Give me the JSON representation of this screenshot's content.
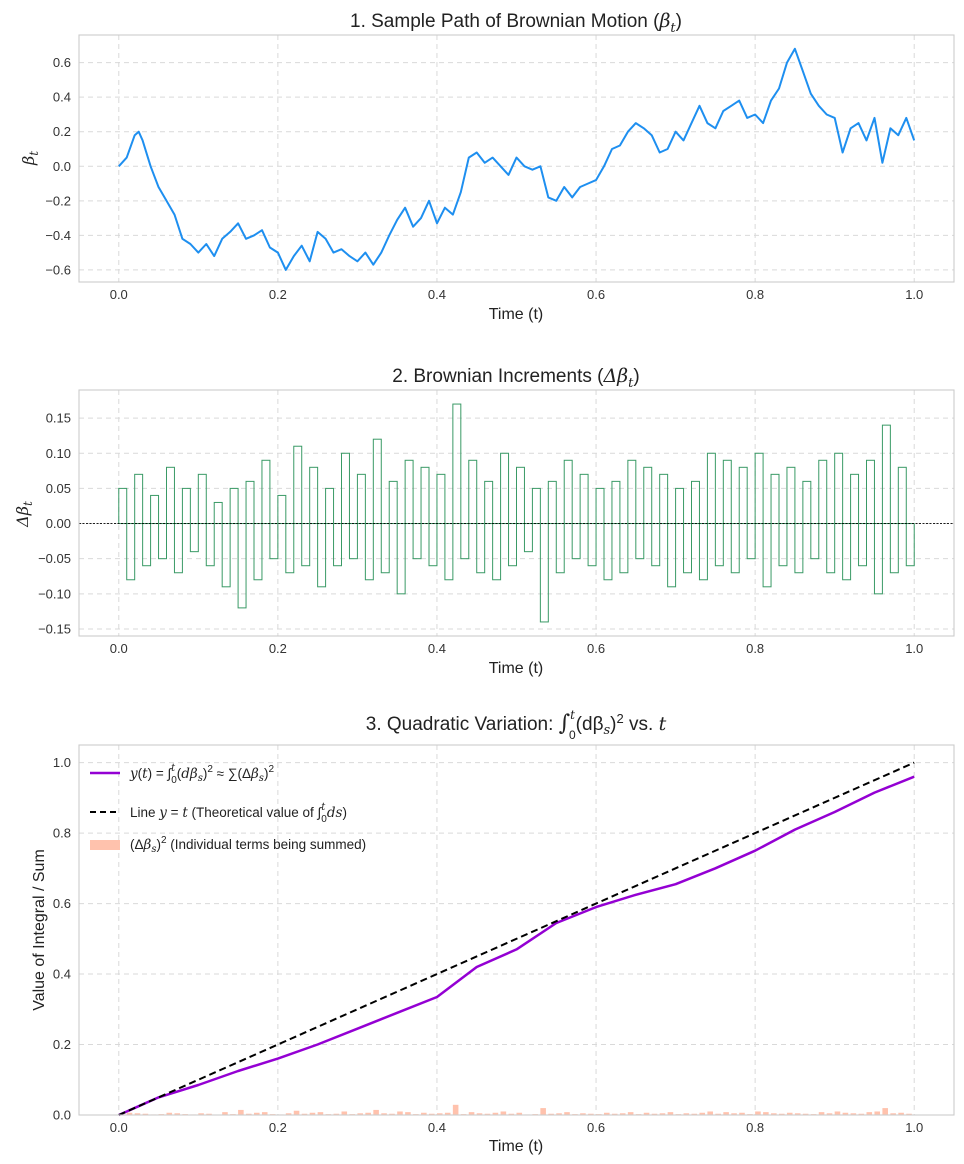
{
  "chart_data": [
    {
      "type": "line",
      "title": "1. Sample Path of Brownian Motion (βt)",
      "title_parts": {
        "text": "1. Sample Path of Brownian Motion (",
        "sym": "β",
        "sub": "t",
        "close": ")"
      },
      "xlabel": "Time (t)",
      "ylabel_parts": {
        "sym": "β",
        "sub": "t"
      },
      "xlim": [
        -0.05,
        1.05
      ],
      "ylim": [
        -0.67,
        0.76
      ],
      "xticks": [
        0.0,
        0.2,
        0.4,
        0.6,
        0.8,
        1.0
      ],
      "xtick_labels": [
        "0.0",
        "0.2",
        "0.4",
        "0.6",
        "0.8",
        "1.0"
      ],
      "yticks": [
        -0.6,
        -0.4,
        -0.2,
        0.0,
        0.2,
        0.4,
        0.6
      ],
      "ytick_labels": [
        "−0.6",
        "−0.4",
        "−0.2",
        "0.0",
        "0.2",
        "0.4",
        "0.6"
      ],
      "grid": true,
      "series": [
        {
          "color": "#1e8ff0",
          "linewidth": 2,
          "x": [
            0.0,
            0.01,
            0.02,
            0.025,
            0.03,
            0.04,
            0.05,
            0.06,
            0.07,
            0.08,
            0.09,
            0.1,
            0.11,
            0.12,
            0.13,
            0.14,
            0.15,
            0.16,
            0.17,
            0.18,
            0.19,
            0.2,
            0.21,
            0.22,
            0.23,
            0.24,
            0.25,
            0.26,
            0.27,
            0.28,
            0.29,
            0.3,
            0.31,
            0.32,
            0.33,
            0.34,
            0.35,
            0.36,
            0.37,
            0.38,
            0.39,
            0.4,
            0.41,
            0.42,
            0.43,
            0.44,
            0.45,
            0.46,
            0.47,
            0.48,
            0.49,
            0.5,
            0.51,
            0.52,
            0.53,
            0.54,
            0.55,
            0.56,
            0.57,
            0.58,
            0.59,
            0.6,
            0.61,
            0.62,
            0.63,
            0.64,
            0.65,
            0.66,
            0.67,
            0.68,
            0.69,
            0.7,
            0.71,
            0.72,
            0.73,
            0.74,
            0.75,
            0.76,
            0.77,
            0.78,
            0.79,
            0.8,
            0.81,
            0.82,
            0.83,
            0.84,
            0.85,
            0.86,
            0.87,
            0.88,
            0.89,
            0.9,
            0.91,
            0.92,
            0.93,
            0.94,
            0.95,
            0.96,
            0.97,
            0.98,
            0.99,
            1.0
          ],
          "y": [
            0.0,
            0.05,
            0.18,
            0.2,
            0.15,
            0.0,
            -0.12,
            -0.2,
            -0.28,
            -0.42,
            -0.45,
            -0.5,
            -0.45,
            -0.52,
            -0.42,
            -0.38,
            -0.33,
            -0.42,
            -0.4,
            -0.37,
            -0.47,
            -0.5,
            -0.6,
            -0.52,
            -0.46,
            -0.55,
            -0.38,
            -0.42,
            -0.5,
            -0.48,
            -0.52,
            -0.55,
            -0.5,
            -0.57,
            -0.5,
            -0.4,
            -0.31,
            -0.24,
            -0.35,
            -0.3,
            -0.2,
            -0.33,
            -0.24,
            -0.28,
            -0.15,
            0.05,
            0.08,
            0.02,
            0.05,
            0.0,
            -0.05,
            0.05,
            0.0,
            -0.02,
            0.0,
            -0.18,
            -0.2,
            -0.12,
            -0.18,
            -0.12,
            -0.1,
            -0.08,
            0.0,
            0.1,
            0.12,
            0.2,
            0.25,
            0.22,
            0.18,
            0.08,
            0.1,
            0.2,
            0.15,
            0.25,
            0.35,
            0.25,
            0.22,
            0.32,
            0.35,
            0.38,
            0.28,
            0.3,
            0.25,
            0.38,
            0.45,
            0.6,
            0.68,
            0.55,
            0.42,
            0.35,
            0.3,
            0.28,
            0.08,
            0.22,
            0.25,
            0.15,
            0.28,
            0.02,
            0.22,
            0.18,
            0.28,
            0.15
          ]
        }
      ]
    },
    {
      "type": "bar",
      "title": "2. Brownian Increments (Δβt)",
      "title_parts": {
        "text": "2. Brownian Increments (",
        "sym": "Δβ",
        "sub": "t",
        "close": ")"
      },
      "xlabel": "Time (t)",
      "ylabel_parts": {
        "sym": "Δβ",
        "sub": "t"
      },
      "xlim": [
        -0.05,
        1.05
      ],
      "ylim": [
        -0.16,
        0.19
      ],
      "xticks": [
        0.0,
        0.2,
        0.4,
        0.6,
        0.8,
        1.0
      ],
      "xtick_labels": [
        "0.0",
        "0.2",
        "0.4",
        "0.6",
        "0.8",
        "1.0"
      ],
      "yticks": [
        -0.15,
        -0.1,
        -0.05,
        0.0,
        0.05,
        0.1,
        0.15
      ],
      "ytick_labels": [
        "−0.15",
        "−0.10",
        "−0.05",
        "0.00",
        "0.05",
        "0.10",
        "0.15"
      ],
      "grid": true,
      "style": "step",
      "color": "#3a9a66",
      "x": [
        0.0,
        0.01,
        0.02,
        0.03,
        0.04,
        0.05,
        0.06,
        0.07,
        0.08,
        0.09,
        0.1,
        0.11,
        0.12,
        0.13,
        0.14,
        0.15,
        0.16,
        0.17,
        0.18,
        0.19,
        0.2,
        0.21,
        0.22,
        0.23,
        0.24,
        0.25,
        0.26,
        0.27,
        0.28,
        0.29,
        0.3,
        0.31,
        0.32,
        0.33,
        0.34,
        0.35,
        0.36,
        0.37,
        0.38,
        0.39,
        0.4,
        0.41,
        0.42,
        0.43,
        0.44,
        0.45,
        0.46,
        0.47,
        0.48,
        0.49,
        0.5,
        0.51,
        0.52,
        0.53,
        0.54,
        0.55,
        0.56,
        0.57,
        0.58,
        0.59,
        0.6,
        0.61,
        0.62,
        0.63,
        0.64,
        0.65,
        0.66,
        0.67,
        0.68,
        0.69,
        0.7,
        0.71,
        0.72,
        0.73,
        0.74,
        0.75,
        0.76,
        0.77,
        0.78,
        0.79,
        0.8,
        0.81,
        0.82,
        0.83,
        0.84,
        0.85,
        0.86,
        0.87,
        0.88,
        0.89,
        0.9,
        0.91,
        0.92,
        0.93,
        0.94,
        0.95,
        0.96,
        0.97,
        0.98,
        0.99
      ],
      "values": [
        0.05,
        -0.08,
        0.07,
        -0.06,
        0.04,
        -0.05,
        0.08,
        -0.07,
        0.05,
        -0.04,
        0.07,
        -0.06,
        0.03,
        -0.09,
        0.05,
        -0.12,
        0.06,
        -0.08,
        0.09,
        -0.05,
        0.04,
        -0.07,
        0.11,
        -0.06,
        0.08,
        -0.09,
        0.05,
        -0.06,
        0.1,
        -0.05,
        0.07,
        -0.08,
        0.12,
        -0.07,
        0.06,
        -0.1,
        0.09,
        -0.05,
        0.08,
        -0.06,
        0.07,
        -0.08,
        0.17,
        -0.05,
        0.09,
        -0.07,
        0.06,
        -0.08,
        0.1,
        -0.06,
        0.08,
        -0.04,
        0.05,
        -0.14,
        0.06,
        -0.07,
        0.09,
        -0.05,
        0.07,
        -0.06,
        0.05,
        -0.08,
        0.06,
        -0.07,
        0.09,
        -0.05,
        0.08,
        -0.06,
        0.07,
        -0.09,
        0.05,
        -0.07,
        0.06,
        -0.08,
        0.1,
        -0.06,
        0.09,
        -0.07,
        0.08,
        -0.05,
        0.1,
        -0.09,
        0.07,
        -0.06,
        0.08,
        -0.07,
        0.06,
        -0.05,
        0.09,
        -0.07,
        0.1,
        -0.08,
        0.07,
        -0.06,
        0.09,
        -0.1,
        0.14,
        -0.07,
        0.08,
        -0.06
      ]
    },
    {
      "type": "line",
      "title": "3. Quadratic Variation: ∫0t(dβs)2 vs. t",
      "title_parts": {
        "text": "3. Quadratic Variation: ",
        "int": "∫",
        "sup": "t",
        "sub": "0",
        "body": "(dβ",
        "bsub": "s",
        "close": ")",
        "pow": "2",
        "vs": " vs. ",
        "t": "t"
      },
      "xlabel": "Time (t)",
      "ylabel": "Value of Integral / Sum",
      "xlim": [
        -0.05,
        1.05
      ],
      "ylim": [
        0.0,
        1.05
      ],
      "xticks": [
        0.0,
        0.2,
        0.4,
        0.6,
        0.8,
        1.0
      ],
      "xtick_labels": [
        "0.0",
        "0.2",
        "0.4",
        "0.6",
        "0.8",
        "1.0"
      ],
      "yticks": [
        0.0,
        0.2,
        0.4,
        0.6,
        0.8,
        1.0
      ],
      "ytick_labels": [
        "0.0",
        "0.2",
        "0.4",
        "0.6",
        "0.8",
        "1.0"
      ],
      "grid": true,
      "legend": {
        "placement": "top-left",
        "entries": [
          {
            "label": "y(t) = ∫0t(dβs)2 ≈ ∑(Δβs)2",
            "color": "#9400d3",
            "style": "solid"
          },
          {
            "label": "Line y = t (Theoretical value of ∫0tds)",
            "color": "#000000",
            "style": "dashed"
          },
          {
            "label": "(Δβs)2 (Individual terms being summed)",
            "color": "#ffc2ad",
            "style": "patch"
          }
        ]
      },
      "series": [
        {
          "name": "y(t) = ∫0t(dβs)2 ≈ ∑(Δβs)2",
          "color": "#9400d3",
          "x": [
            0.0,
            0.025,
            0.05,
            0.1,
            0.15,
            0.2,
            0.25,
            0.3,
            0.35,
            0.4,
            0.45,
            0.5,
            0.55,
            0.6,
            0.65,
            0.7,
            0.75,
            0.8,
            0.85,
            0.9,
            0.95,
            1.0
          ],
          "y": [
            0.0,
            0.025,
            0.05,
            0.085,
            0.125,
            0.16,
            0.2,
            0.245,
            0.29,
            0.335,
            0.42,
            0.47,
            0.545,
            0.59,
            0.625,
            0.655,
            0.7,
            0.75,
            0.81,
            0.86,
            0.915,
            0.96
          ]
        },
        {
          "name": "Line y = t (Theoretical value of ∫0tds)",
          "color": "#000000",
          "style": "dashed",
          "x": [
            0.0,
            1.0
          ],
          "y": [
            0.0,
            1.0
          ]
        }
      ],
      "increments_squared": {
        "color": "#ffc2ad",
        "x": [
          0.0,
          0.01,
          0.02,
          0.03,
          0.04,
          0.05,
          0.06,
          0.07,
          0.08,
          0.09,
          0.1,
          0.11,
          0.12,
          0.13,
          0.14,
          0.15,
          0.16,
          0.17,
          0.18,
          0.19,
          0.2,
          0.21,
          0.22,
          0.23,
          0.24,
          0.25,
          0.26,
          0.27,
          0.28,
          0.29,
          0.3,
          0.31,
          0.32,
          0.33,
          0.34,
          0.35,
          0.36,
          0.37,
          0.38,
          0.39,
          0.4,
          0.41,
          0.42,
          0.43,
          0.44,
          0.45,
          0.46,
          0.47,
          0.48,
          0.49,
          0.5,
          0.51,
          0.52,
          0.53,
          0.54,
          0.55,
          0.56,
          0.57,
          0.58,
          0.59,
          0.6,
          0.61,
          0.62,
          0.63,
          0.64,
          0.65,
          0.66,
          0.67,
          0.68,
          0.69,
          0.7,
          0.71,
          0.72,
          0.73,
          0.74,
          0.75,
          0.76,
          0.77,
          0.78,
          0.79,
          0.8,
          0.81,
          0.82,
          0.83,
          0.84,
          0.85,
          0.86,
          0.87,
          0.88,
          0.89,
          0.9,
          0.91,
          0.92,
          0.93,
          0.94,
          0.95,
          0.96,
          0.97,
          0.98,
          0.99
        ],
        "values": [
          0.0025,
          0.0064,
          0.0049,
          0.0036,
          0.0016,
          0.0025,
          0.0064,
          0.0049,
          0.0025,
          0.0016,
          0.0049,
          0.0036,
          0.0009,
          0.0081,
          0.0025,
          0.0144,
          0.0036,
          0.0064,
          0.0081,
          0.0025,
          0.0016,
          0.0049,
          0.0121,
          0.0036,
          0.0064,
          0.0081,
          0.0025,
          0.0036,
          0.01,
          0.0025,
          0.0049,
          0.0064,
          0.0144,
          0.0049,
          0.0036,
          0.01,
          0.0081,
          0.0025,
          0.0064,
          0.0036,
          0.0049,
          0.0064,
          0.0289,
          0.0025,
          0.0081,
          0.0049,
          0.0036,
          0.0064,
          0.01,
          0.0036,
          0.0064,
          0.0016,
          0.0025,
          0.0196,
          0.0036,
          0.0049,
          0.0081,
          0.0025,
          0.0049,
          0.0036,
          0.0025,
          0.0064,
          0.0036,
          0.0049,
          0.0081,
          0.0025,
          0.0064,
          0.0036,
          0.0049,
          0.0081,
          0.0025,
          0.0049,
          0.0036,
          0.0064,
          0.01,
          0.0036,
          0.0081,
          0.0049,
          0.0064,
          0.0025,
          0.01,
          0.0081,
          0.0049,
          0.0036,
          0.0064,
          0.0049,
          0.0036,
          0.0025,
          0.0081,
          0.0049,
          0.01,
          0.0064,
          0.0049,
          0.0036,
          0.0081,
          0.01,
          0.0196,
          0.0049,
          0.0064,
          0.0036
        ]
      }
    }
  ]
}
